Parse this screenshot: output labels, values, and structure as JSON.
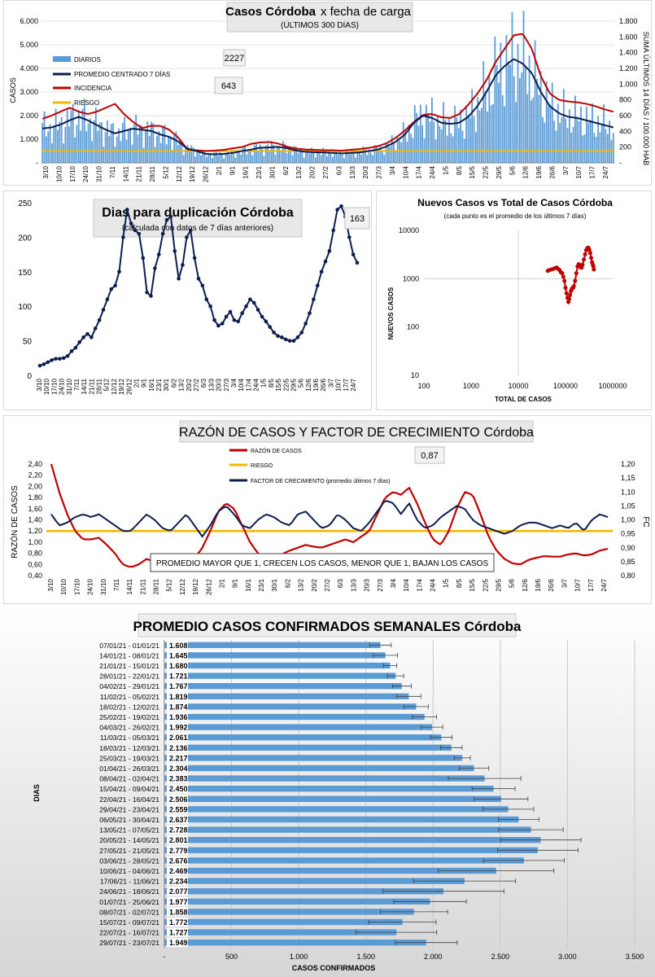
{
  "chart_data": [
    {
      "id": "casos",
      "type": "bar+line",
      "title_bold": "Casos Córdoba",
      "title_rest": "x fecha de carga",
      "subtitle": "(ÚLTIMOS 300 DÍAS)",
      "ylabel": "CASOS",
      "y2label": "SUMA ÚLTIMOS 14 DÍAS / 100.000 HAB",
      "yticks": [
        "-",
        "1.000",
        "2.000",
        "3.000",
        "4.000",
        "5.000",
        "6.000"
      ],
      "y2ticks": [
        "-",
        "200",
        "400",
        "600",
        "800",
        "1.000",
        "1.200",
        "1.400",
        "1.600",
        "1.800"
      ],
      "ylim": [
        0,
        6000
      ],
      "y2lim": [
        0,
        1800
      ],
      "xlabels": [
        "3/10",
        "10/10",
        "17/10",
        "24/10",
        "31/10",
        "7/11",
        "14/11",
        "21/11",
        "28/11",
        "5/12",
        "12/12",
        "19/12",
        "26/12",
        "2/1",
        "9/1",
        "16/1",
        "23/1",
        "30/1",
        "6/2",
        "13/2",
        "20/2",
        "27/2",
        "6/3",
        "13/3",
        "20/3",
        "27/3",
        "3/4",
        "10/4",
        "17/4",
        "24/4",
        "1/5",
        "8/5",
        "15/5",
        "22/5",
        "29/5",
        "5/6",
        "12/6",
        "19/6",
        "26/6",
        "3/7",
        "10/7",
        "17/7",
        "24/7"
      ],
      "legend": [
        {
          "name": "DIARIOS",
          "color": "#5b9bd5"
        },
        {
          "name": "PROMEDIO CENTRADO 7 DÍAS",
          "color": "#0d1d4f"
        },
        {
          "name": "INCIDENCIA",
          "color": "#c00000"
        },
        {
          "name": "RIESGO",
          "color": "#f2b800"
        }
      ],
      "callouts": [
        "2227",
        "643"
      ],
      "series": {
        "promedio_7d": [
          1450,
          1500,
          1620,
          1800,
          1950,
          1800,
          1600,
          1400,
          1250,
          1350,
          1450,
          1400,
          1350,
          1200,
          1100,
          900,
          600,
          500,
          380,
          360,
          380,
          420,
          500,
          560,
          640,
          650,
          680,
          620,
          520,
          470,
          450,
          440,
          420,
          400,
          420,
          440,
          500,
          560,
          700,
          900,
          1200,
          1700,
          2000,
          1900,
          1700,
          1650,
          1700,
          1950,
          2400,
          3000,
          3700,
          4100,
          4400,
          4200,
          3800,
          3000,
          2400,
          2100,
          1950,
          1900,
          1800,
          1700,
          1600,
          1500
        ],
        "incidencia": [
          560,
          600,
          650,
          700,
          650,
          620,
          650,
          700,
          750,
          620,
          520,
          440,
          470,
          470,
          420,
          320,
          170,
          160,
          150,
          155,
          165,
          185,
          200,
          240,
          260,
          265,
          245,
          205,
          180,
          170,
          165,
          160,
          160,
          155,
          165,
          175,
          190,
          210,
          250,
          320,
          410,
          520,
          610,
          620,
          580,
          570,
          620,
          740,
          880,
          1050,
          1280,
          1450,
          1620,
          1640,
          1450,
          1100,
          880,
          800,
          780,
          770,
          750,
          720,
          680,
          650
        ],
        "riesgo": 150
      }
    },
    {
      "id": "duplicacion",
      "type": "line",
      "title": "Dias para duplicación Córdoba",
      "subtitle": "(calculada con datos de 7 días anteriores)",
      "yticks": [
        "0",
        "50",
        "100",
        "150",
        "200",
        "250"
      ],
      "ylim": [
        0,
        250
      ],
      "xlabels": [
        "3/10",
        "10/10",
        "17/10",
        "24/10",
        "31/10",
        "7/11",
        "14/11",
        "21/11",
        "28/11",
        "5/12",
        "12/12",
        "19/12",
        "26/12",
        "2/1",
        "9/1",
        "16/1",
        "23/1",
        "30/1",
        "6/2",
        "13/2",
        "20/2",
        "27/2",
        "6/3",
        "13/3",
        "20/3",
        "27/3",
        "3/4",
        "10/4",
        "17/4",
        "24/4",
        "1/5",
        "8/5",
        "15/5",
        "22/5",
        "29/5",
        "5/6",
        "12/6",
        "19/6",
        "26/6",
        "3/7",
        "10/7",
        "17/7",
        "24/7"
      ],
      "callout": "163",
      "values": [
        14,
        16,
        19,
        22,
        24,
        24,
        25,
        28,
        35,
        40,
        48,
        55,
        60,
        55,
        68,
        80,
        95,
        110,
        125,
        130,
        150,
        200,
        240,
        220,
        210,
        205,
        170,
        120,
        115,
        155,
        175,
        205,
        225,
        230,
        180,
        140,
        160,
        200,
        210,
        170,
        140,
        130,
        110,
        100,
        80,
        72,
        75,
        85,
        92,
        80,
        78,
        90,
        100,
        110,
        105,
        95,
        85,
        78,
        70,
        62,
        57,
        55,
        52,
        50,
        50,
        55,
        62,
        75,
        90,
        110,
        130,
        150,
        165,
        180,
        210,
        240,
        245,
        230,
        200,
        175,
        163
      ]
    },
    {
      "id": "nuevos_vs_total",
      "type": "scatter",
      "title": "Nuevos Casos vs Total de Casos Córdoba",
      "subtitle": "(cada punto es el promedio de los últimos 7 días)",
      "xlabel": "TOTAL DE CASOS",
      "ylabel": "NUEVOS CASOS",
      "xticks": [
        "100",
        "1000",
        "10000",
        "100000",
        "1000000"
      ],
      "yticks": [
        "10",
        "100",
        "1000",
        "10000"
      ],
      "xlim": [
        100,
        1000000
      ],
      "ylim": [
        10,
        10000
      ],
      "points": [
        [
          42000,
          1450
        ],
        [
          45000,
          1500
        ],
        [
          50000,
          1550
        ],
        [
          55000,
          1600
        ],
        [
          60000,
          1650
        ],
        [
          65000,
          1700
        ],
        [
          70000,
          1600
        ],
        [
          75000,
          1500
        ],
        [
          80000,
          1350
        ],
        [
          85000,
          1300
        ],
        [
          90000,
          1100
        ],
        [
          95000,
          900
        ],
        [
          100000,
          650
        ],
        [
          105000,
          500
        ],
        [
          110000,
          400
        ],
        [
          115000,
          330
        ],
        [
          120000,
          380
        ],
        [
          125000,
          460
        ],
        [
          130000,
          550
        ],
        [
          135000,
          600
        ],
        [
          140000,
          640
        ],
        [
          145000,
          650
        ],
        [
          150000,
          700
        ],
        [
          160000,
          900
        ],
        [
          170000,
          1300
        ],
        [
          180000,
          1800
        ],
        [
          190000,
          2000
        ],
        [
          200000,
          1900
        ],
        [
          210000,
          1700
        ],
        [
          220000,
          1700
        ],
        [
          230000,
          1950
        ],
        [
          245000,
          2500
        ],
        [
          260000,
          3200
        ],
        [
          275000,
          3900
        ],
        [
          290000,
          4300
        ],
        [
          305000,
          4400
        ],
        [
          320000,
          4000
        ],
        [
          335000,
          3400
        ],
        [
          350000,
          2700
        ],
        [
          365000,
          2200
        ],
        [
          380000,
          1950
        ],
        [
          390000,
          1800
        ],
        [
          400000,
          1550
        ]
      ]
    },
    {
      "id": "razon",
      "type": "line",
      "title_plain": "RAZÓN DE CASOS Y FACTOR DE CRECIMIENTO",
      "title_place": "Córdoba",
      "ylabel": "RAZÓN DE CASOS",
      "y2label": "FC",
      "yticks": [
        "0,40",
        "0,60",
        "0,80",
        "1,00",
        "1,20",
        "1,40",
        "1,60",
        "1,80",
        "2,00",
        "2,20",
        "2,40"
      ],
      "y2ticks": [
        "0,80",
        "0,85",
        "0,90",
        "0,95",
        "1,00",
        "1,05",
        "1,10",
        "1,15",
        "1,20"
      ],
      "ylim": [
        0.4,
        2.4
      ],
      "y2lim": [
        0.8,
        1.2
      ],
      "xlabels": [
        "3/10",
        "10/10",
        "17/10",
        "24/10",
        "31/10",
        "7/11",
        "14/11",
        "21/11",
        "28/11",
        "5/12",
        "12/12",
        "19/12",
        "26/12",
        "2/1",
        "9/1",
        "16/1",
        "23/1",
        "30/1",
        "6/2",
        "13/2",
        "20/2",
        "27/2",
        "6/3",
        "13/3",
        "20/3",
        "27/3",
        "3/4",
        "10/4",
        "17/4",
        "24/4",
        "1/5",
        "8/5",
        "15/5",
        "22/5",
        "29/5",
        "5/6",
        "12/6",
        "19/6",
        "26/6",
        "3/7",
        "10/7",
        "17/7",
        "24/7"
      ],
      "legend": [
        {
          "name": "RAZÓN DE CASOS",
          "color": "#c00000"
        },
        {
          "name": "RIESGO",
          "color": "#f2b800"
        },
        {
          "name": "FACTOR DE CRECIMIENTO (promedio últimos 7 días)",
          "color": "#0d1d4f"
        }
      ],
      "callout": "0,87",
      "note": "PROMEDIO MAYOR QUE 1, CRECEN LOS CASOS, MENOR QUE 1, BAJAN LOS CASOS",
      "series": {
        "razon": [
          2.4,
          1.9,
          1.5,
          1.2,
          1.05,
          1.05,
          1.08,
          0.95,
          0.8,
          0.6,
          0.55,
          0.6,
          0.7,
          0.65,
          0.55,
          0.52,
          0.55,
          0.6,
          0.7,
          0.9,
          1.2,
          1.55,
          1.7,
          1.6,
          1.3,
          1.0,
          0.8,
          0.72,
          0.72,
          0.78,
          0.85,
          0.9,
          0.95,
          0.92,
          0.9,
          0.95,
          1.0,
          1.05,
          1.0,
          1.1,
          1.2,
          1.5,
          1.8,
          1.9,
          1.85,
          1.98,
          1.7,
          1.35,
          1.05,
          0.95,
          1.2,
          1.6,
          1.9,
          1.85,
          1.5,
          1.1,
          0.85,
          0.7,
          0.62,
          0.6,
          0.68,
          0.72,
          0.75,
          0.74,
          0.74,
          0.78,
          0.8,
          0.76,
          0.78,
          0.85,
          0.88
        ],
        "fc": [
          1.02,
          0.98,
          0.99,
          1.01,
          1.02,
          1.01,
          1.02,
          1.0,
          0.98,
          0.96,
          0.96,
          0.99,
          1.02,
          1.0,
          0.97,
          0.96,
          0.99,
          1.02,
          0.98,
          0.94,
          0.98,
          1.03,
          1.05,
          1.02,
          0.98,
          0.97,
          1.0,
          1.02,
          1.01,
          0.99,
          0.98,
          1.02,
          1.03,
          1.0,
          0.97,
          0.98,
          1.02,
          1.0,
          0.97,
          0.96,
          0.99,
          1.03,
          1.07,
          1.06,
          1.02,
          1.06,
          1.0,
          0.97,
          0.98,
          1.01,
          1.03,
          1.05,
          1.04,
          1.0,
          0.98,
          0.97,
          0.96,
          0.95,
          0.96,
          0.98,
          0.99,
          0.99,
          0.98,
          0.97,
          0.98,
          0.97,
          0.99,
          0.96,
          1.0,
          1.02,
          1.01
        ]
      },
      "riesgo": 1.2
    },
    {
      "id": "promedio_semanal",
      "type": "bar",
      "orientation": "horizontal",
      "title": "PROMEDIO CASOS CONFIRMADOS SEMANALES Córdoba",
      "ylabel": "DIAS",
      "xlabel": "CASOS CONFIRMADOS",
      "xticks": [
        "-",
        "500",
        "1.000",
        "1.500",
        "2.000",
        "2.500",
        "3.000",
        "3.500"
      ],
      "xlim": [
        0,
        3500
      ],
      "categories": [
        "07/01/21 - 01/01/21",
        "14/01/21 - 08/01/21",
        "21/01/21 - 15/01/21",
        "28/01/21 - 22/01/21",
        "04/02/21 - 29/01/21",
        "11/02/21 - 05/02/21",
        "18/02/21 - 12/02/21",
        "25/02/21 - 19/02/21",
        "04/03/21 - 26/02/21",
        "11/03/21 - 05/03/21",
        "18/03/21 - 12/03/21",
        "25/03/21 - 19/03/21",
        "01/04/21 - 26/03/21",
        "08/04/21 - 02/04/21",
        "15/04/21 - 09/04/21",
        "22/04/21 - 16/04/21",
        "29/04/21 - 23/04/21",
        "06/05/21 - 30/04/21",
        "13/05/21 - 07/05/21",
        "20/05/21 - 14/05/21",
        "27/05/21 - 21/05/21",
        "03/06/21 - 28/05/21",
        "10/06/21 - 04/06/21",
        "17/06/21 - 11/06/21",
        "24/06/21 - 18/06/21",
        "01/07/21 - 25/06/21",
        "08/07/21 - 02/07/21",
        "15/07/21 - 09/07/21",
        "22/07/21 - 16/07/21",
        "29/07/21 - 23/07/21"
      ],
      "labels": [
        "1.608",
        "1.645",
        "1.680",
        "1.721",
        "1.767",
        "1.819",
        "1.874",
        "1.936",
        "1.992",
        "2.061",
        "2.136",
        "2.217",
        "2.304",
        "2.383",
        "2.450",
        "2.506",
        "2.559",
        "2.637",
        "2.728",
        "2.801",
        "2.779",
        "2.676",
        "2.469",
        "2.234",
        "2.077",
        "1.977",
        "1.858",
        "1.772",
        "1.727",
        "1.949"
      ],
      "values": [
        1608,
        1645,
        1680,
        1721,
        1767,
        1819,
        1874,
        1936,
        1992,
        2061,
        2136,
        2217,
        2304,
        2383,
        2450,
        2506,
        2559,
        2637,
        2728,
        2801,
        2779,
        2676,
        2469,
        2234,
        2077,
        1977,
        1858,
        1772,
        1727,
        1949
      ],
      "errors": [
        80,
        90,
        50,
        60,
        70,
        90,
        90,
        90,
        80,
        80,
        80,
        60,
        110,
        270,
        160,
        200,
        190,
        150,
        240,
        300,
        300,
        300,
        430,
        380,
        450,
        270,
        250,
        250,
        300,
        230
      ]
    }
  ]
}
